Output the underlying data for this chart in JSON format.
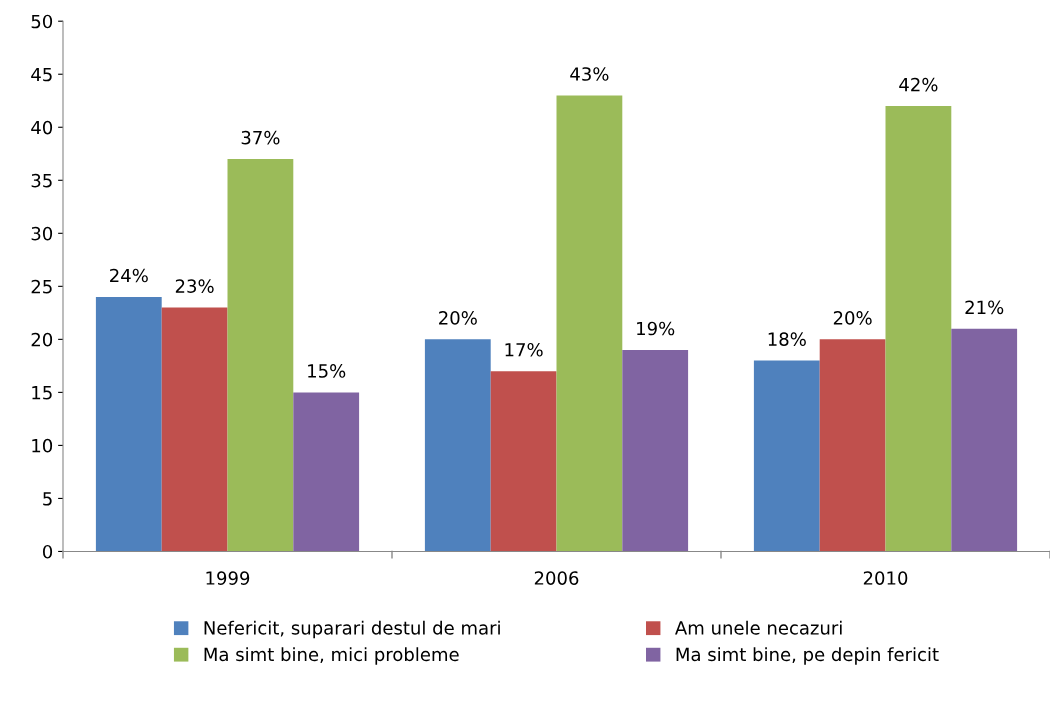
{
  "chart_data": {
    "type": "bar",
    "categories": [
      "1999",
      "2006",
      "2010"
    ],
    "series": [
      {
        "name": "Nefericit, suparari destul de mari",
        "color": "#4f81bd",
        "values": [
          24,
          20,
          18
        ],
        "value_labels": [
          "24%",
          "20%",
          "18%"
        ]
      },
      {
        "name": "Am unele necazuri",
        "color": "#c0504d",
        "values": [
          23,
          17,
          20
        ],
        "value_labels": [
          "23%",
          "17%",
          "20%"
        ]
      },
      {
        "name": "Ma simt bine, mici probleme",
        "color": "#9bbb59",
        "values": [
          37,
          43,
          42
        ],
        "value_labels": [
          "37%",
          "43%",
          "42%"
        ]
      },
      {
        "name": "Ma simt bine, pe depin fericit",
        "color": "#8064a2",
        "values": [
          15,
          19,
          21
        ],
        "value_labels": [
          "15%",
          "19%",
          "21%"
        ]
      }
    ],
    "ylim": [
      0,
      50
    ],
    "yticks": [
      0,
      5,
      10,
      15,
      20,
      25,
      30,
      35,
      40,
      45,
      50
    ],
    "grid": false,
    "legend": "bottom"
  }
}
